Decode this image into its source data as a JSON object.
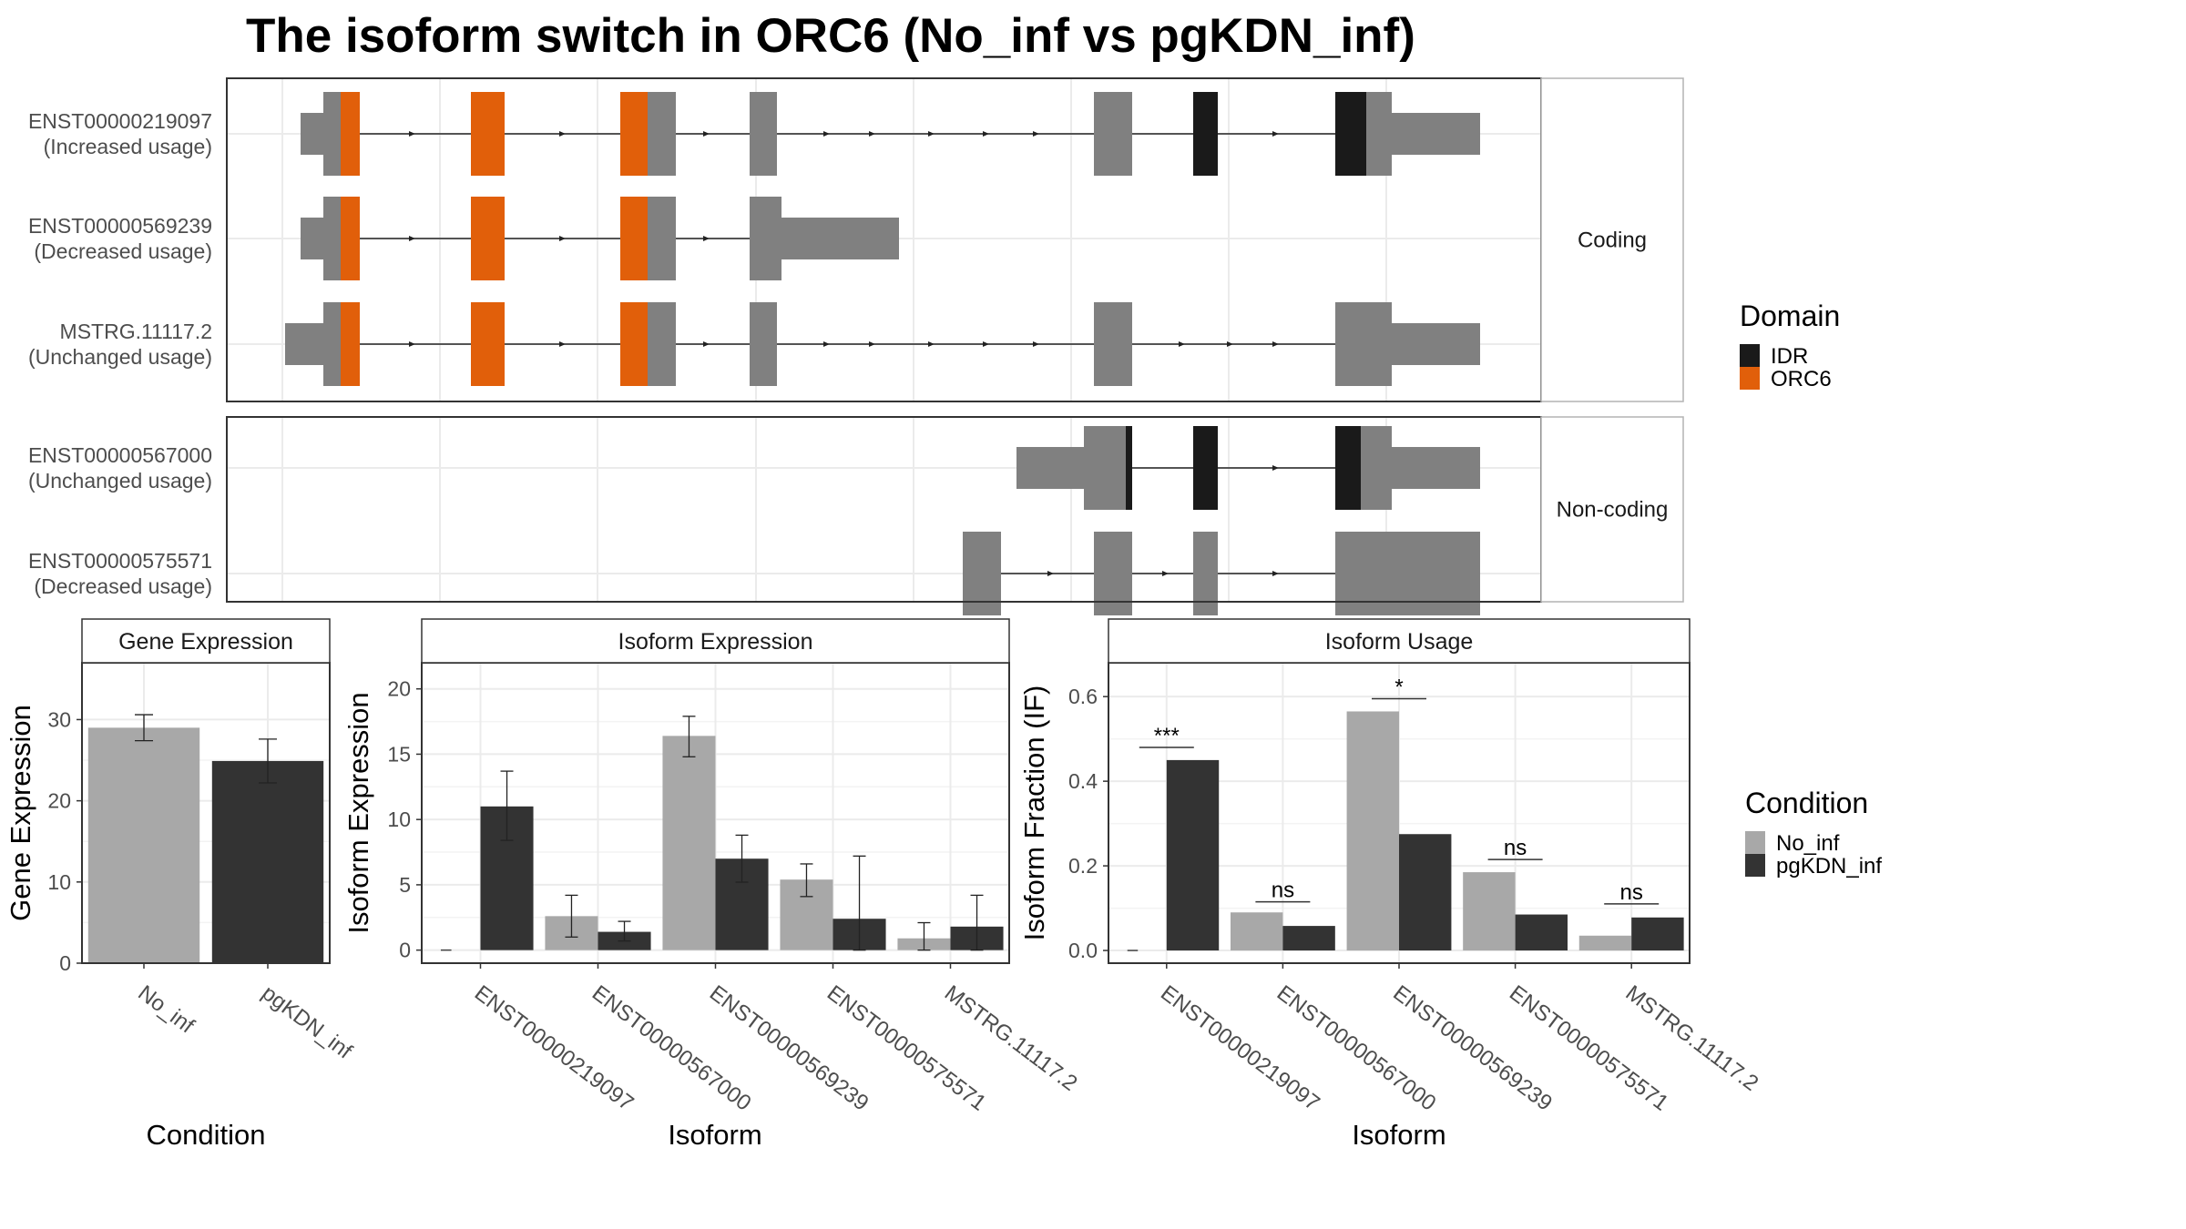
{
  "title": "The isoform switch in ORC6 (No_inf vs pgKDN_inf)",
  "colors": {
    "exon": "#808080",
    "idr": "#1a1a1a",
    "orc6": "#e15f0a",
    "no_inf": "#a8a8a8",
    "pgkdn_inf": "#333333",
    "grid": "#ebebeb",
    "panel_border": "#333333",
    "strip_border": "#b3b3b3"
  },
  "structure": {
    "facets": [
      {
        "label": "Coding",
        "transcripts": [
          {
            "id": "ENST00000219097",
            "usage": "(Increased usage)"
          },
          {
            "id": "ENST00000569239",
            "usage": "(Decreased usage)"
          },
          {
            "id": "MSTRG.11117.2",
            "usage": "(Unchanged usage)"
          }
        ]
      },
      {
        "label": "Non-coding",
        "transcripts": [
          {
            "id": "ENST00000567000",
            "usage": "(Unchanged usage)"
          },
          {
            "id": "ENST00000575571",
            "usage": "(Decreased usage)"
          }
        ]
      }
    ],
    "legend_title": "Domain",
    "legend": [
      {
        "name": "IDR",
        "color": "#1a1a1a"
      },
      {
        "name": "ORC6",
        "color": "#e15f0a"
      }
    ]
  },
  "chart_data": [
    {
      "type": "bar",
      "title": "Gene Expression",
      "xlabel": "Condition",
      "ylabel": "Gene Expression",
      "ylim": [
        0,
        37
      ],
      "yticks": [
        0,
        10,
        20,
        30
      ],
      "categories": [
        "No_inf",
        "pgKDN_inf"
      ],
      "values": [
        29,
        24.9
      ],
      "error": [
        [
          27.4,
          30.6
        ],
        [
          22.2,
          27.6
        ]
      ]
    },
    {
      "type": "bar",
      "title": "Isoform Expression",
      "xlabel": "Isoform",
      "ylabel": "Isoform Expression",
      "ylim": [
        -1,
        22
      ],
      "yticks": [
        0,
        5,
        10,
        15,
        20
      ],
      "categories": [
        "ENST00000219097",
        "ENST00000567000",
        "ENST00000569239",
        "ENST00000575571",
        "MSTRG.11117.2"
      ],
      "series": [
        {
          "name": "No_inf",
          "values": [
            0.0,
            2.6,
            16.4,
            5.4,
            0.9
          ],
          "error": [
            [
              0,
              0
            ],
            [
              1.0,
              4.2
            ],
            [
              14.8,
              17.9
            ],
            [
              4.1,
              6.6
            ],
            [
              0.0,
              2.1
            ]
          ]
        },
        {
          "name": "pgKDN_inf",
          "values": [
            11.0,
            1.4,
            7.0,
            2.4,
            1.8
          ],
          "error": [
            [
              8.4,
              13.7
            ],
            [
              0.7,
              2.2
            ],
            [
              5.2,
              8.8
            ],
            [
              0.0,
              7.2
            ],
            [
              0.0,
              4.2
            ]
          ]
        }
      ]
    },
    {
      "type": "bar",
      "title": "Isoform Usage",
      "xlabel": "Isoform",
      "ylabel": "Isoform Fraction (IF)",
      "ylim": [
        -0.03,
        0.68
      ],
      "yticks": [
        0.0,
        0.2,
        0.4,
        0.6
      ],
      "categories": [
        "ENST00000219097",
        "ENST00000567000",
        "ENST00000569239",
        "ENST00000575571",
        "MSTRG.11117.2"
      ],
      "series": [
        {
          "name": "No_inf",
          "values": [
            0.0,
            0.09,
            0.565,
            0.185,
            0.035
          ]
        },
        {
          "name": "pgKDN_inf",
          "values": [
            0.45,
            0.058,
            0.275,
            0.085,
            0.078
          ]
        }
      ],
      "annotations": [
        {
          "label": "***",
          "category": 0,
          "y": 0.48
        },
        {
          "label": "ns",
          "category": 1,
          "y": 0.115
        },
        {
          "label": "*",
          "category": 2,
          "y": 0.595
        },
        {
          "label": "ns",
          "category": 3,
          "y": 0.215
        },
        {
          "label": "ns",
          "category": 4,
          "y": 0.11
        }
      ]
    }
  ],
  "condition_legend": {
    "title": "Condition",
    "items": [
      {
        "name": "No_inf",
        "color": "#a8a8a8"
      },
      {
        "name": "pgKDN_inf",
        "color": "#333333"
      }
    ]
  }
}
